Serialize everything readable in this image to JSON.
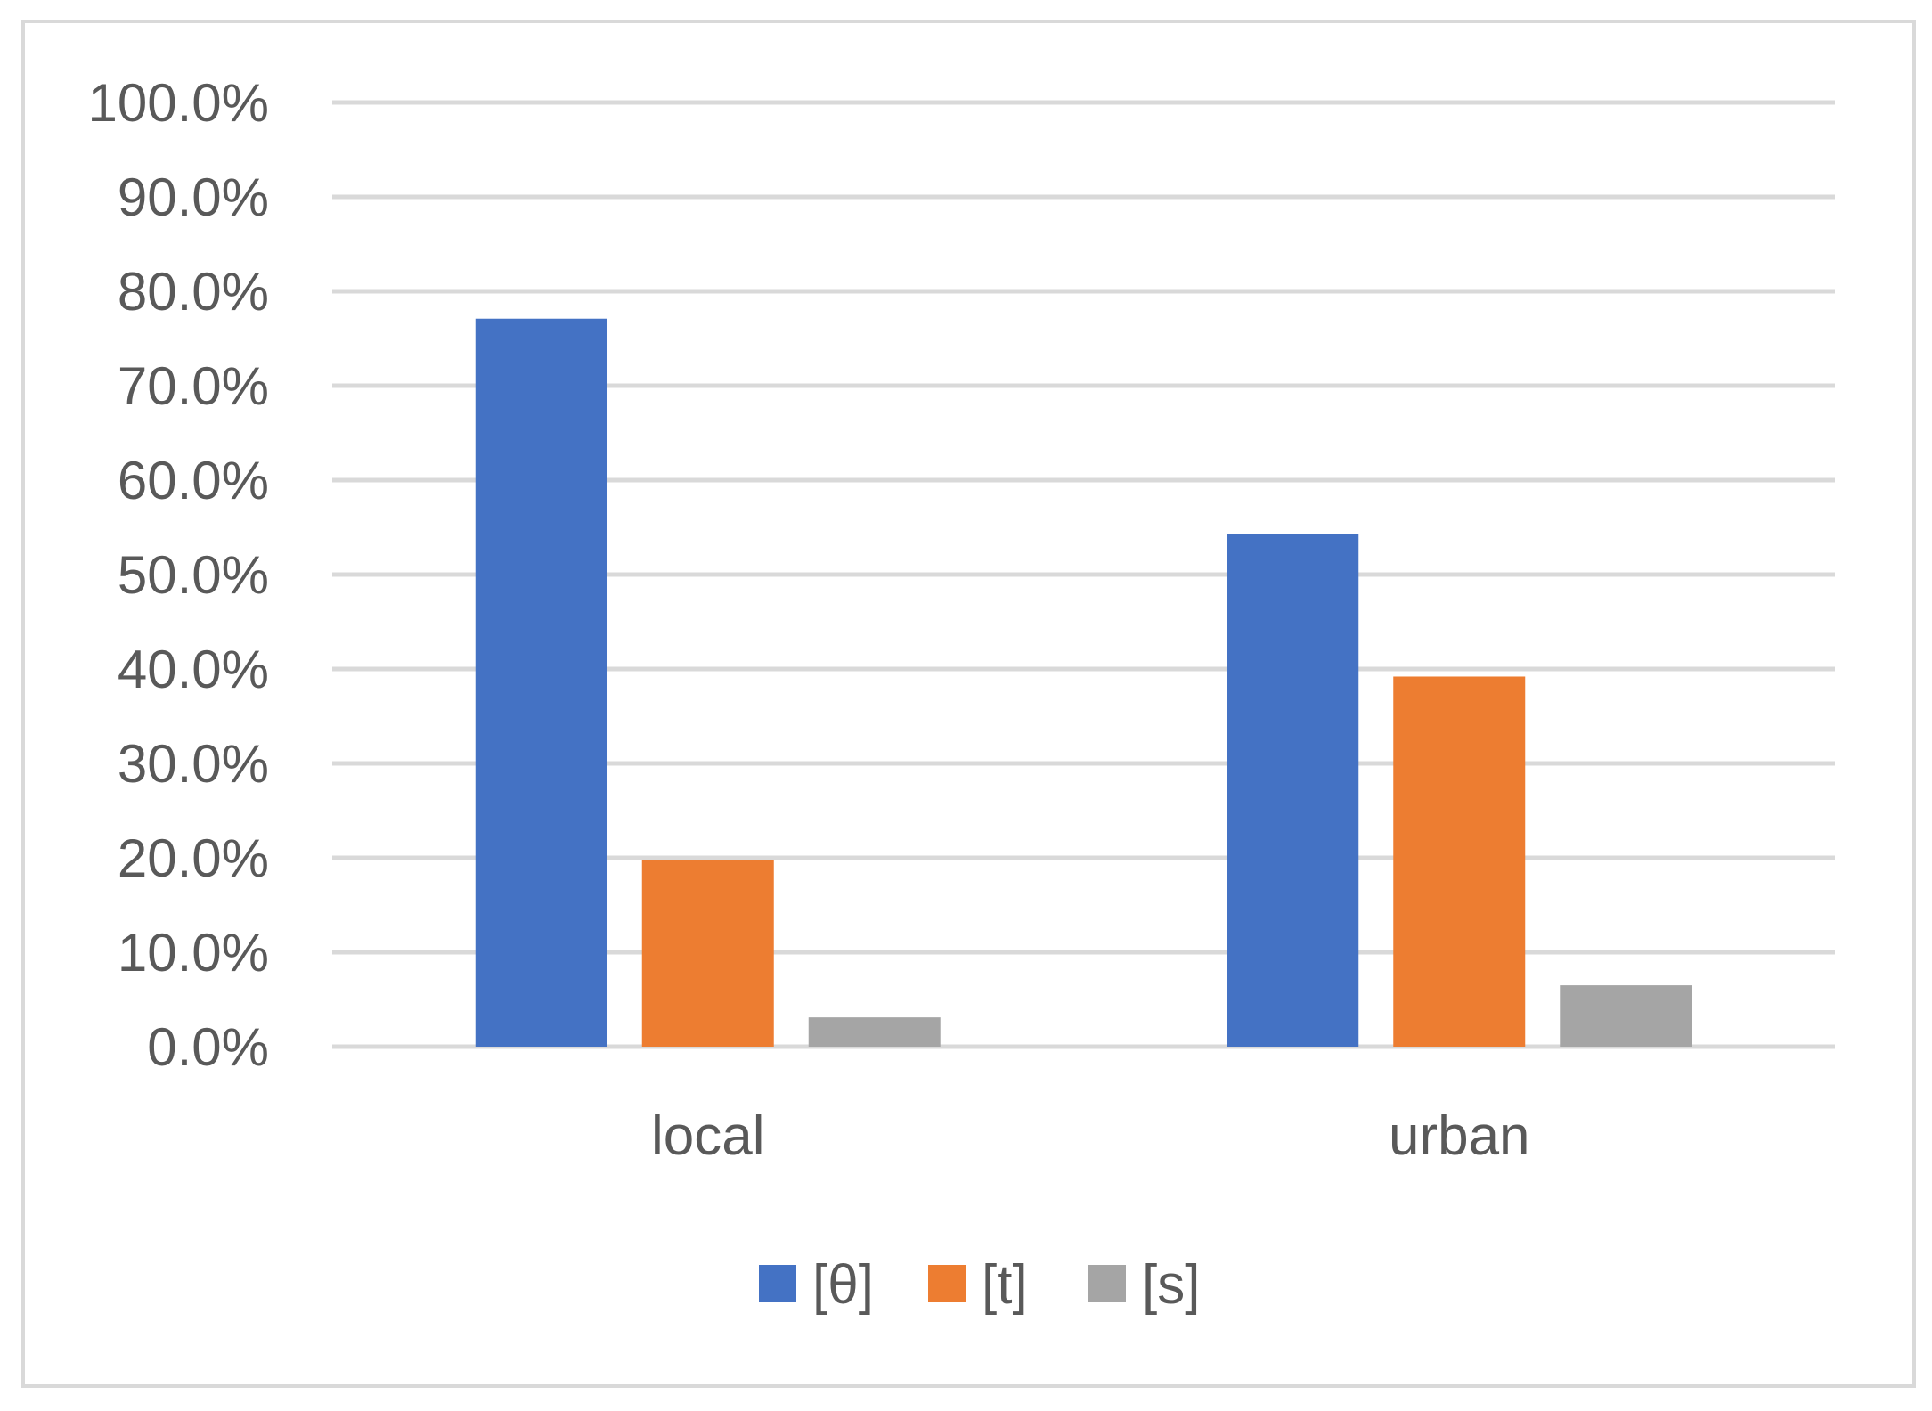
{
  "chart_data": {
    "type": "bar",
    "title": "",
    "xlabel": "",
    "ylabel": "",
    "categories": [
      "local",
      "urban"
    ],
    "series": [
      {
        "name": "[θ]",
        "color": "#4472c4",
        "values": [
          77.1,
          54.3
        ]
      },
      {
        "name": "[t]",
        "color": "#ed7d31",
        "values": [
          19.8,
          39.2
        ]
      },
      {
        "name": "[s]",
        "color": "#a5a5a5",
        "values": [
          3.1,
          6.5
        ]
      }
    ],
    "ylim": [
      0,
      100
    ],
    "y_ticks": [
      "0.0%",
      "10.0%",
      "20.0%",
      "30.0%",
      "40.0%",
      "50.0%",
      "60.0%",
      "70.0%",
      "80.0%",
      "90.0%",
      "100.0%"
    ],
    "grid": true,
    "legend_position": "bottom",
    "gridline_color": "#d9d9d9",
    "text_color": "#595959"
  }
}
